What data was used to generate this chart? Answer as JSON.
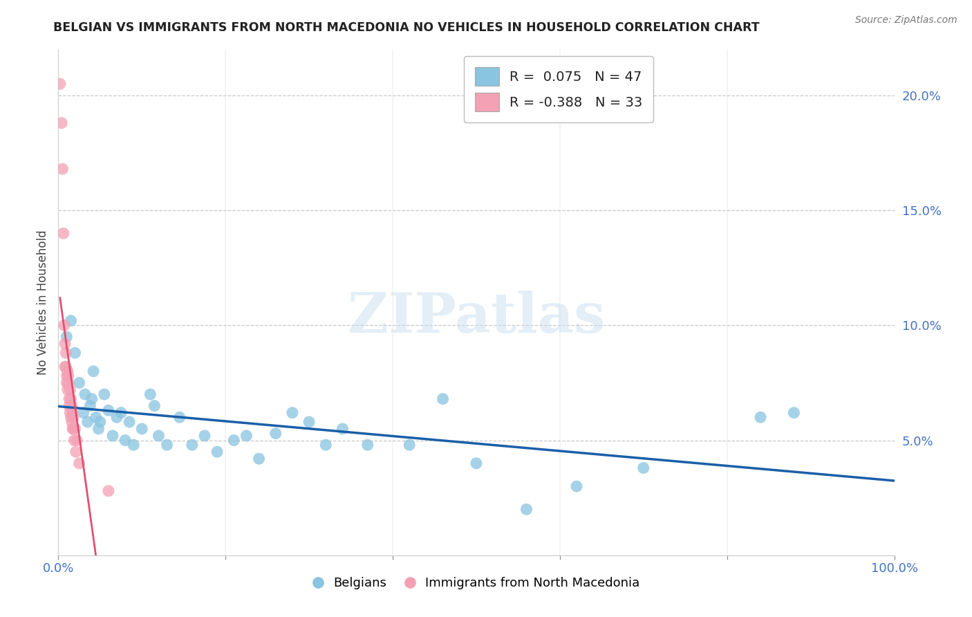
{
  "title": "BELGIAN VS IMMIGRANTS FROM NORTH MACEDONIA NO VEHICLES IN HOUSEHOLD CORRELATION CHART",
  "source": "Source: ZipAtlas.com",
  "ylabel": "No Vehicles in Household",
  "watermark": "ZIPatlas",
  "xlim": [
    0,
    1.0
  ],
  "ylim": [
    0,
    0.22
  ],
  "legend1_label": "R =  0.075   N = 47",
  "legend2_label": "R = -0.388   N = 33",
  "legend_belgians": "Belgians",
  "legend_immigrants": "Immigrants from North Macedonia",
  "blue_color": "#89c4e1",
  "pink_color": "#f4a0b5",
  "blue_line_color": "#1a5fa8",
  "pink_line_color": "#e05070",
  "blue_scatter": [
    [
      0.01,
      0.095
    ],
    [
      0.015,
      0.102
    ],
    [
      0.02,
      0.088
    ],
    [
      0.025,
      0.075
    ],
    [
      0.03,
      0.062
    ],
    [
      0.032,
      0.07
    ],
    [
      0.035,
      0.058
    ],
    [
      0.038,
      0.065
    ],
    [
      0.04,
      0.068
    ],
    [
      0.042,
      0.08
    ],
    [
      0.045,
      0.06
    ],
    [
      0.048,
      0.055
    ],
    [
      0.05,
      0.058
    ],
    [
      0.055,
      0.07
    ],
    [
      0.06,
      0.063
    ],
    [
      0.065,
      0.052
    ],
    [
      0.07,
      0.06
    ],
    [
      0.075,
      0.062
    ],
    [
      0.08,
      0.05
    ],
    [
      0.085,
      0.058
    ],
    [
      0.09,
      0.048
    ],
    [
      0.1,
      0.055
    ],
    [
      0.11,
      0.07
    ],
    [
      0.115,
      0.065
    ],
    [
      0.12,
      0.052
    ],
    [
      0.13,
      0.048
    ],
    [
      0.145,
      0.06
    ],
    [
      0.16,
      0.048
    ],
    [
      0.175,
      0.052
    ],
    [
      0.19,
      0.045
    ],
    [
      0.21,
      0.05
    ],
    [
      0.225,
      0.052
    ],
    [
      0.24,
      0.042
    ],
    [
      0.26,
      0.053
    ],
    [
      0.28,
      0.062
    ],
    [
      0.3,
      0.058
    ],
    [
      0.32,
      0.048
    ],
    [
      0.34,
      0.055
    ],
    [
      0.37,
      0.048
    ],
    [
      0.42,
      0.048
    ],
    [
      0.46,
      0.068
    ],
    [
      0.5,
      0.04
    ],
    [
      0.56,
      0.02
    ],
    [
      0.62,
      0.03
    ],
    [
      0.7,
      0.038
    ],
    [
      0.84,
      0.06
    ],
    [
      0.88,
      0.062
    ]
  ],
  "pink_scatter": [
    [
      0.002,
      0.205
    ],
    [
      0.004,
      0.188
    ],
    [
      0.005,
      0.168
    ],
    [
      0.006,
      0.14
    ],
    [
      0.007,
      0.1
    ],
    [
      0.008,
      0.092
    ],
    [
      0.008,
      0.082
    ],
    [
      0.009,
      0.088
    ],
    [
      0.009,
      0.082
    ],
    [
      0.01,
      0.078
    ],
    [
      0.01,
      0.075
    ],
    [
      0.011,
      0.08
    ],
    [
      0.011,
      0.072
    ],
    [
      0.012,
      0.078
    ],
    [
      0.012,
      0.075
    ],
    [
      0.013,
      0.068
    ],
    [
      0.013,
      0.065
    ],
    [
      0.014,
      0.072
    ],
    [
      0.014,
      0.062
    ],
    [
      0.015,
      0.068
    ],
    [
      0.015,
      0.06
    ],
    [
      0.016,
      0.065
    ],
    [
      0.016,
      0.058
    ],
    [
      0.017,
      0.062
    ],
    [
      0.017,
      0.055
    ],
    [
      0.018,
      0.06
    ],
    [
      0.018,
      0.055
    ],
    [
      0.019,
      0.05
    ],
    [
      0.02,
      0.055
    ],
    [
      0.021,
      0.045
    ],
    [
      0.022,
      0.05
    ],
    [
      0.025,
      0.04
    ],
    [
      0.06,
      0.028
    ]
  ],
  "background_color": "#ffffff",
  "grid_color": "#c8c8c8"
}
